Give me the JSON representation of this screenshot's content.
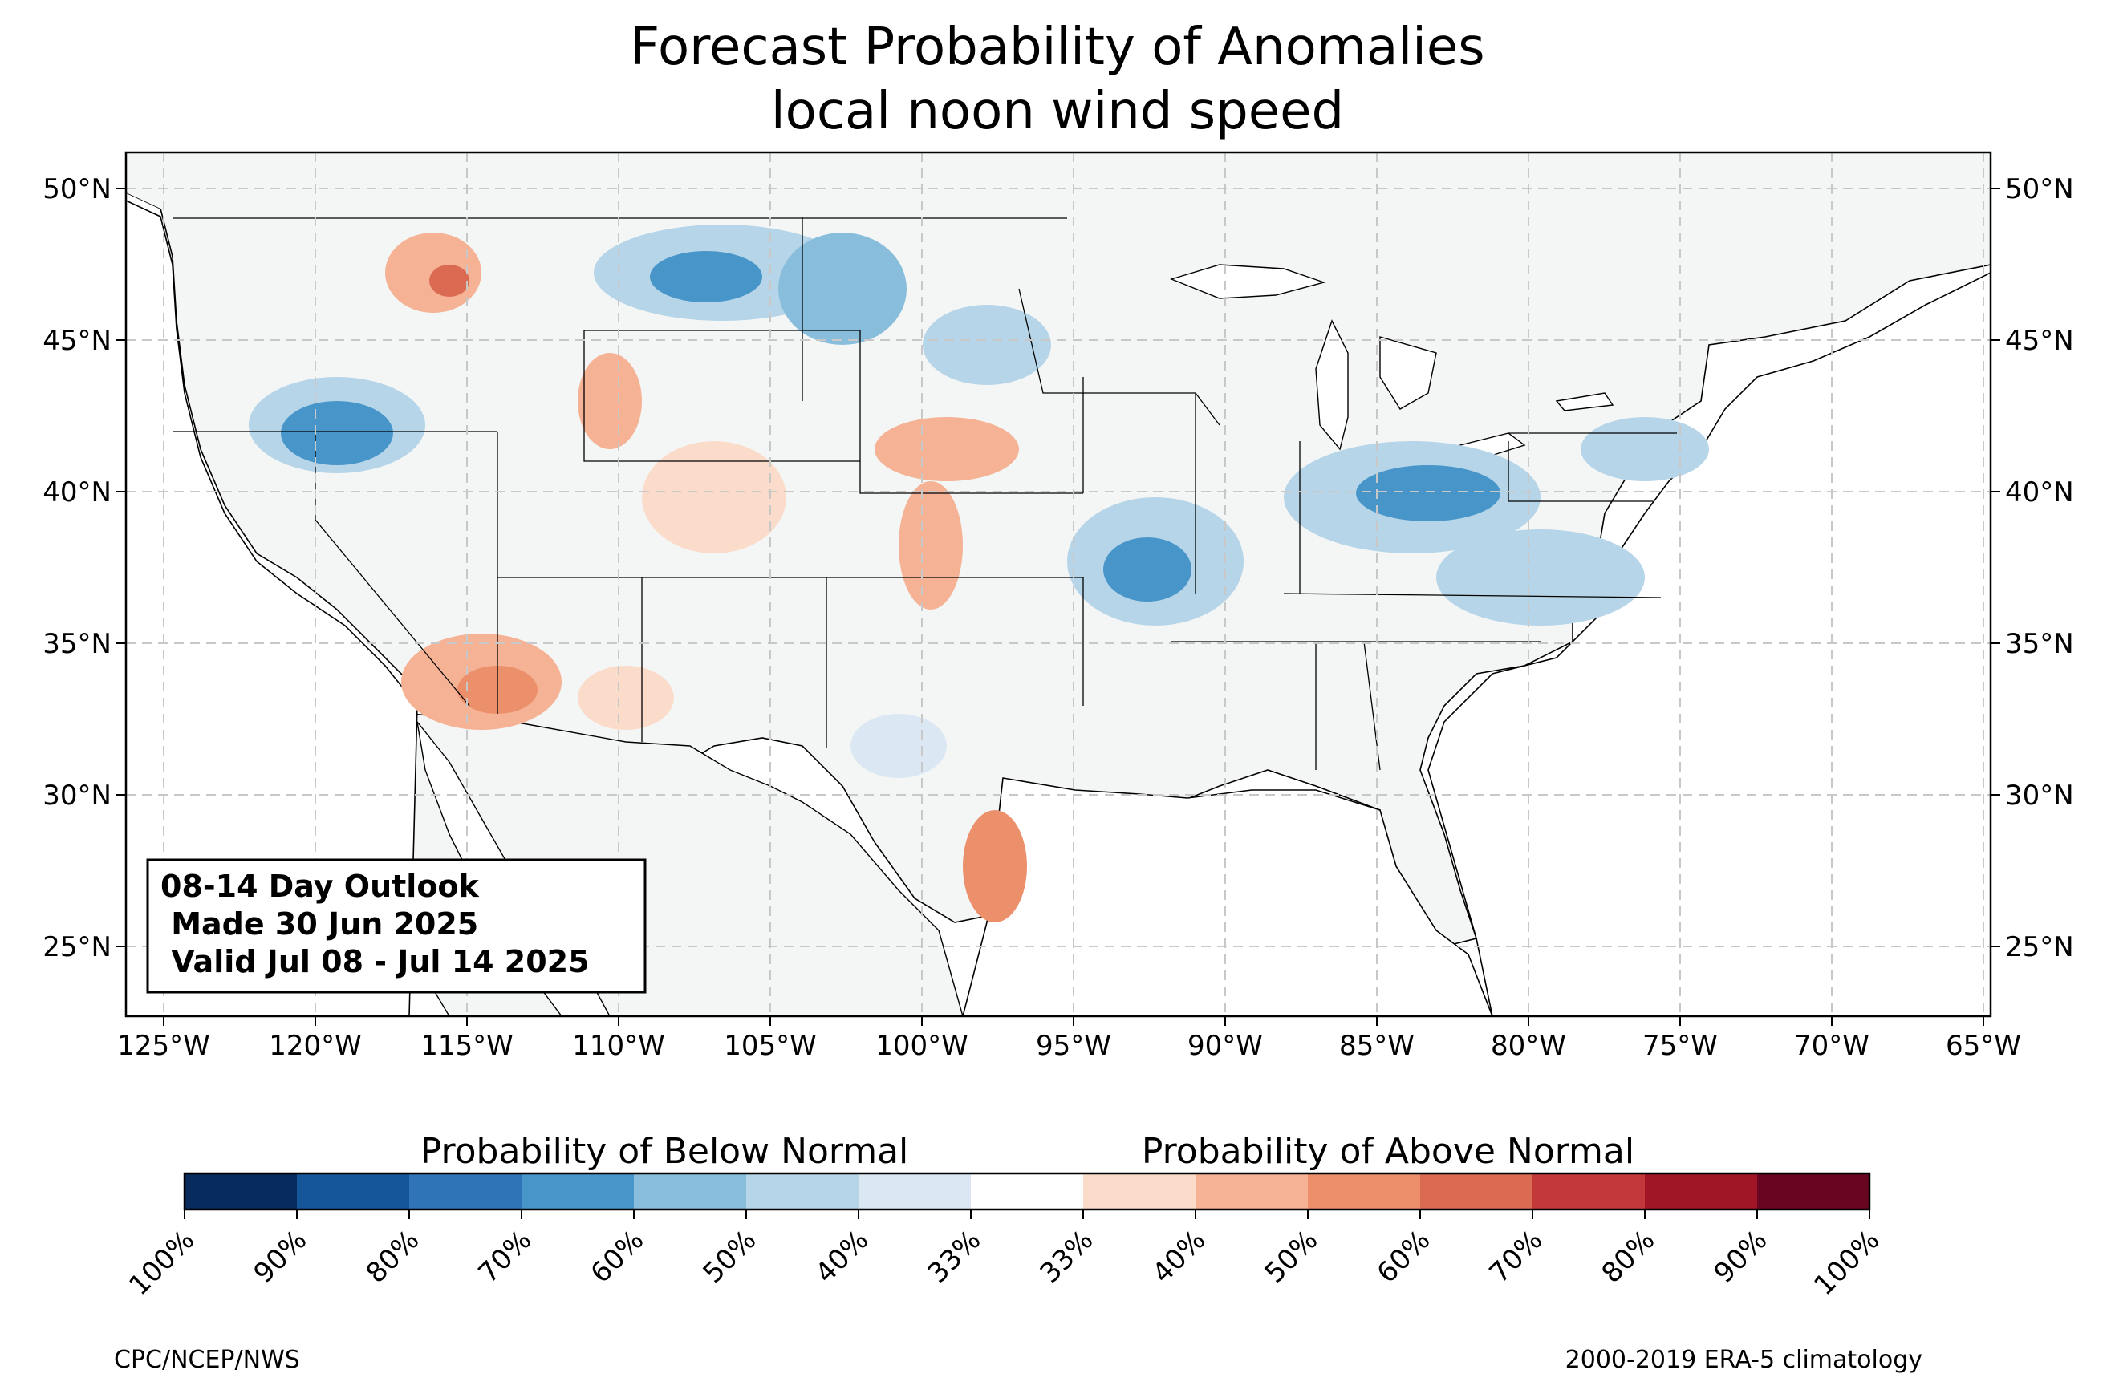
{
  "title": {
    "line1": "Forecast Probability of Anomalies",
    "line2": "local noon wind speed"
  },
  "info_box": {
    "line1": "08-14 Day Outlook",
    "line2": " Made 30 Jun 2025",
    "line3": " Valid Jul 08 - Jul 14 2025"
  },
  "map": {
    "lon_ticks": [
      "125°W",
      "120°W",
      "115°W",
      "110°W",
      "105°W",
      "100°W",
      "95°W",
      "90°W",
      "85°W",
      "80°W",
      "75°W",
      "70°W",
      "65°W"
    ],
    "lat_ticks": [
      "50°N",
      "45°N",
      "40°N",
      "35°N",
      "30°N",
      "25°N"
    ],
    "land_color": "#f4f6f5",
    "ocean_color": "#ffffff"
  },
  "colorbar": {
    "below_label": "Probability of Below Normal",
    "above_label": "Probability of Above Normal",
    "tick_labels": [
      "100%",
      "90%",
      "80%",
      "70%",
      "60%",
      "50%",
      "40%",
      "33%",
      "33%",
      "40%",
      "50%",
      "60%",
      "70%",
      "80%",
      "90%",
      "100%"
    ],
    "colors": [
      "#082b5d",
      "#15559a",
      "#2e74b6",
      "#4896c9",
      "#88bddb",
      "#b6d5e9",
      "#dbe8f3",
      "#ffffff",
      "#fbdccb",
      "#f5b294",
      "#ec906c",
      "#db6a52",
      "#c3383b",
      "#a11627",
      "#6a0521"
    ]
  },
  "footer": {
    "left": "CPC/NCEP/NWS",
    "right": "2000-2019 ERA-5 climatology"
  }
}
